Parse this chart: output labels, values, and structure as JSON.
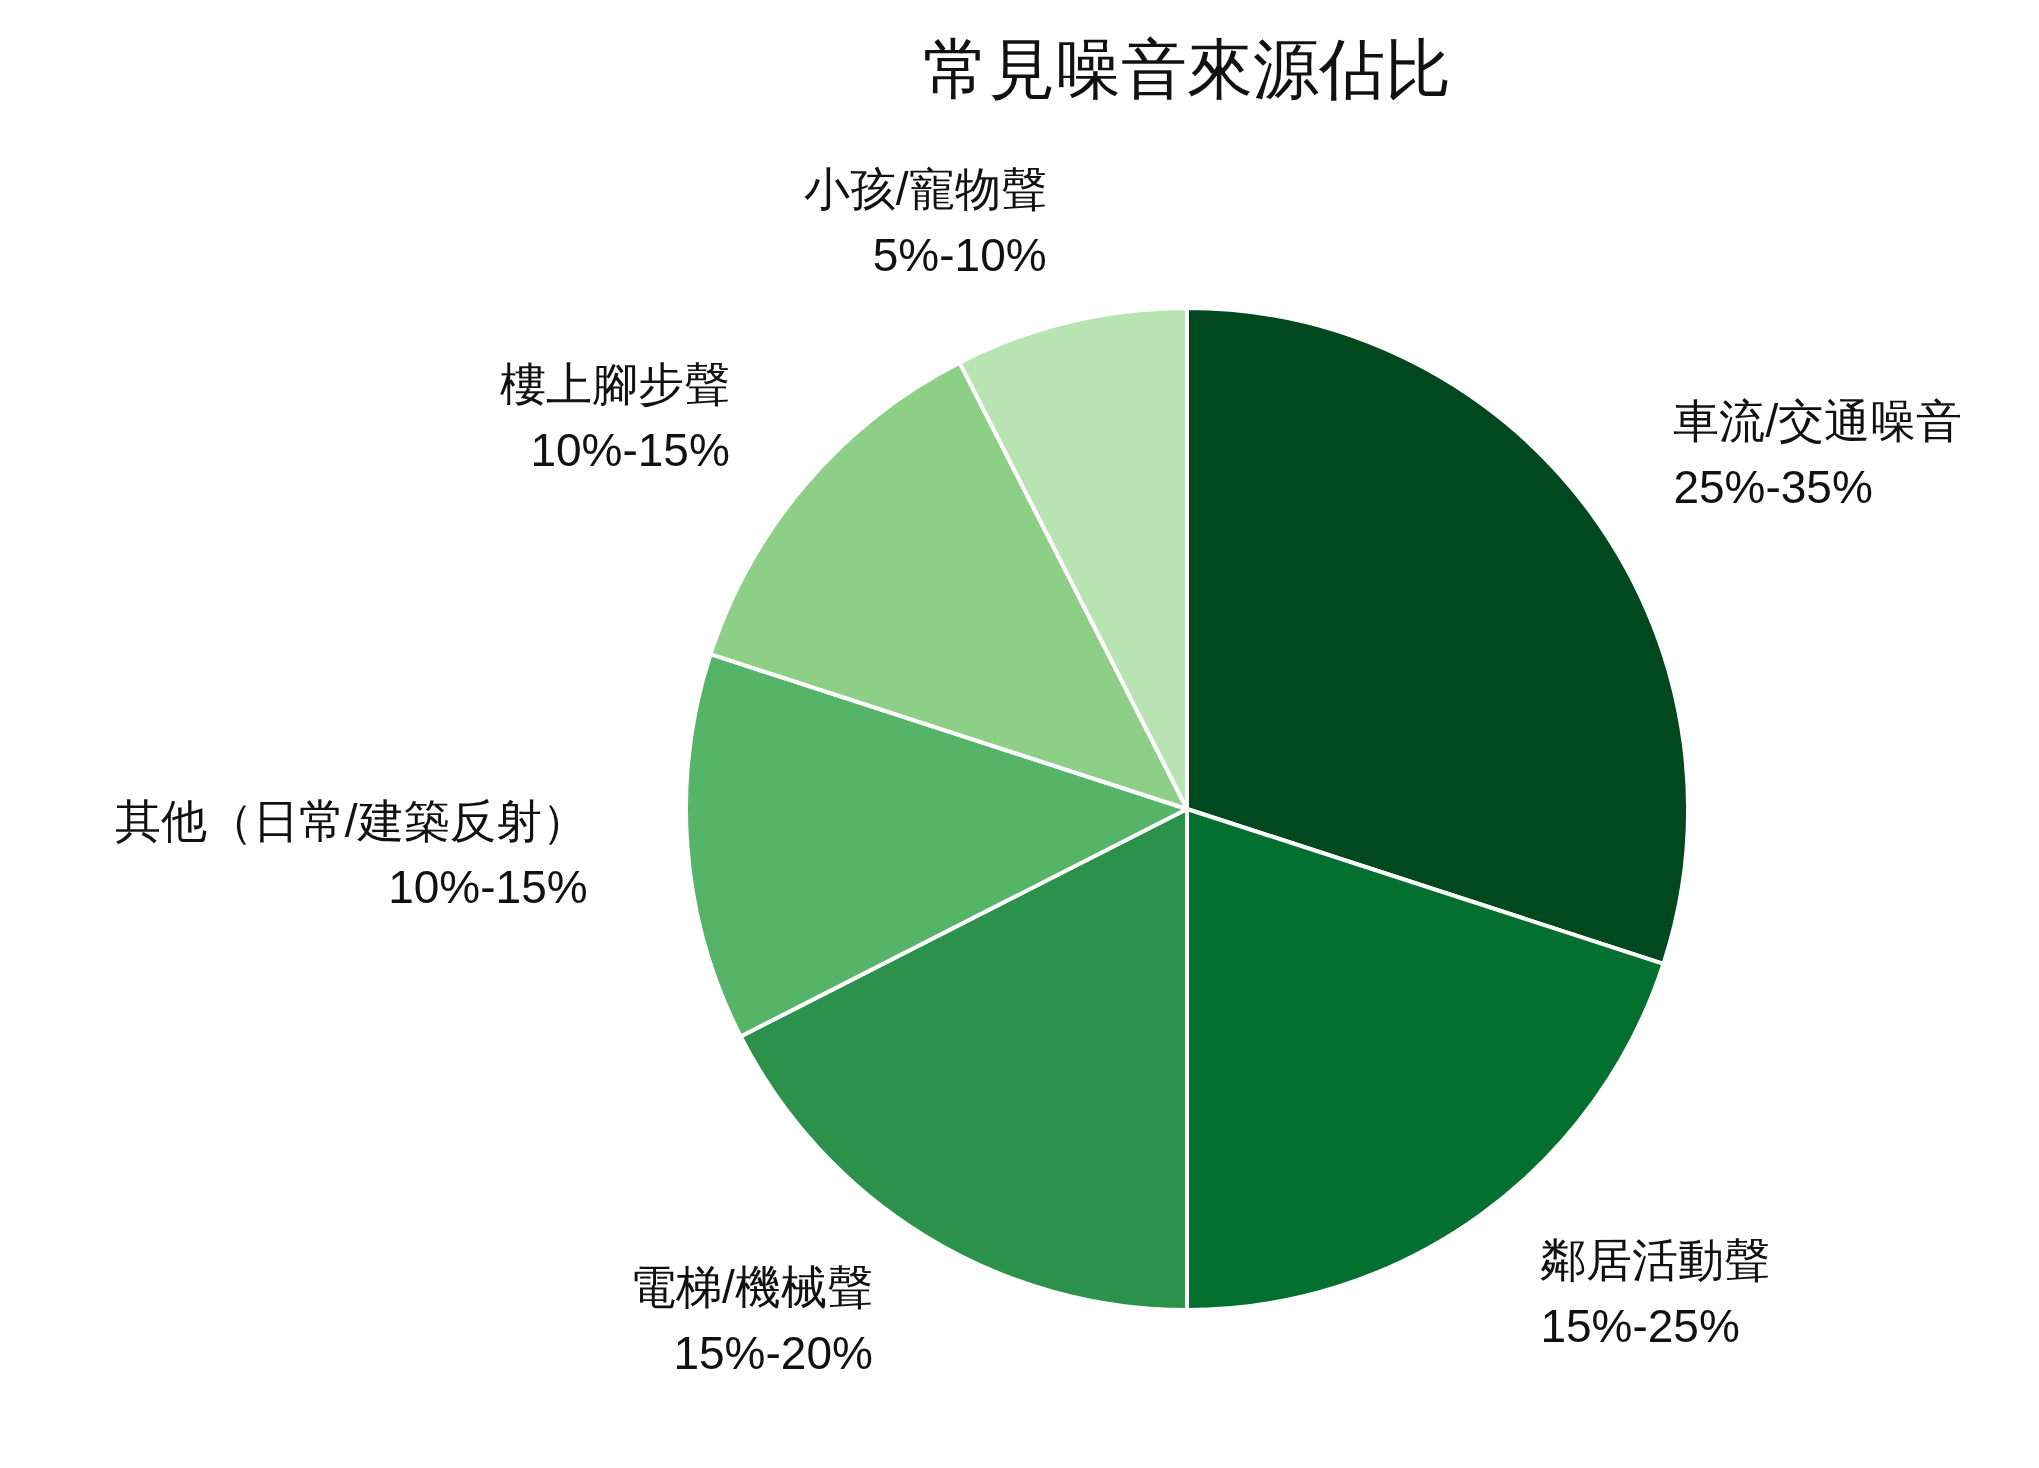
{
  "chart_data": {
    "type": "pie",
    "title": "常見噪音來源佔比",
    "categories": [
      "車流/交通噪音",
      "鄰居活動聲",
      "電梯/機械聲",
      "其他（日常/建築反射）",
      "樓上腳步聲",
      "小孩/寵物聲"
    ],
    "values": [
      30,
      20,
      17.5,
      12.5,
      12.5,
      7.5
    ],
    "annotations": [
      {
        "text": "25%-35%",
        "x": "車流/交通噪音"
      },
      {
        "text": "15%-25%",
        "x": "鄰居活動聲"
      },
      {
        "text": "15%-20%",
        "x": "電梯/機械聲"
      },
      {
        "text": "10%-15%",
        "x": "其他（日常/建築反射）"
      },
      {
        "text": "10%-15%",
        "x": "樓上腳步聲"
      },
      {
        "text": "5%-10%",
        "x": "小孩/寵物聲"
      }
    ],
    "colors": [
      "#00491e",
      "#04702f",
      "#2c924b",
      "#56b468",
      "#8ecf88",
      "#b8e3b2"
    ]
  }
}
